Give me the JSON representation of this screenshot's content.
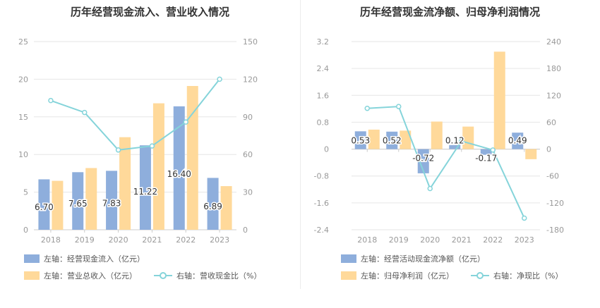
{
  "colors": {
    "blue": "#8eaedc",
    "orange": "#ffd99a",
    "teal": "#85d4da",
    "grid": "#e6e6e6",
    "axis": "#999999"
  },
  "chart_data": [
    {
      "type": "bar",
      "title": "历年经营现金流入、营业收入情况",
      "categories": [
        "2018",
        "2019",
        "2020",
        "2021",
        "2022",
        "2023"
      ],
      "series": [
        {
          "name": "左轴：经营现金流入（亿元）",
          "type": "bar",
          "axis": "left",
          "values": [
            6.7,
            7.65,
            7.83,
            11.22,
            16.4,
            6.89
          ],
          "labels": [
            "6.70",
            "7.65",
            "7.83",
            "11.22",
            "16.40",
            "6.89"
          ]
        },
        {
          "name": "左轴：营业总收入（亿元）",
          "type": "bar",
          "axis": "left",
          "values": [
            6.5,
            8.2,
            12.3,
            16.8,
            19.1,
            5.8
          ]
        },
        {
          "name": "右轴：营收现金比（%）",
          "type": "line",
          "axis": "right",
          "values": [
            103,
            93.5,
            63.6,
            66.8,
            85.9,
            120
          ]
        }
      ],
      "yticks_left": [
        "0",
        "5",
        "10",
        "15",
        "20",
        "25"
      ],
      "yticks_right": [
        "0",
        "30",
        "60",
        "90",
        "120",
        "150"
      ],
      "ylim_left": [
        0,
        25
      ],
      "ylim_right": [
        0,
        150
      ],
      "grid": true,
      "legend": "bottom"
    },
    {
      "type": "bar",
      "title": "历年经营现金流净额、归母净利润情况",
      "categories": [
        "2018",
        "2019",
        "2020",
        "2021",
        "2022",
        "2023"
      ],
      "series": [
        {
          "name": "左轴：经营活动现金流净额（亿元）",
          "type": "bar",
          "axis": "left",
          "values": [
            0.53,
            0.52,
            -0.72,
            0.12,
            -0.17,
            0.49
          ],
          "labels": [
            "0.53",
            "0.52",
            "-0.72",
            "0.12",
            "-0.17",
            "0.49"
          ]
        },
        {
          "name": "左轴：归母净利润（亿元）",
          "type": "bar",
          "axis": "left",
          "values": [
            0.58,
            0.55,
            0.82,
            0.67,
            2.9,
            -0.3
          ]
        },
        {
          "name": "右轴：净现比（%）",
          "type": "line",
          "axis": "right",
          "values": [
            91,
            95,
            -88,
            18,
            -2,
            -154
          ]
        }
      ],
      "yticks_left": [
        "-2.4",
        "-1.6",
        "-0.8",
        "0",
        "0.8",
        "1.6",
        "2.4",
        "3.2"
      ],
      "yticks_right": [
        "-180",
        "-120",
        "-60",
        "0",
        "60",
        "120",
        "180",
        "240"
      ],
      "ylim_left": [
        -2.4,
        3.2
      ],
      "ylim_right": [
        -180,
        240
      ],
      "grid": true,
      "legend": "bottom"
    }
  ]
}
